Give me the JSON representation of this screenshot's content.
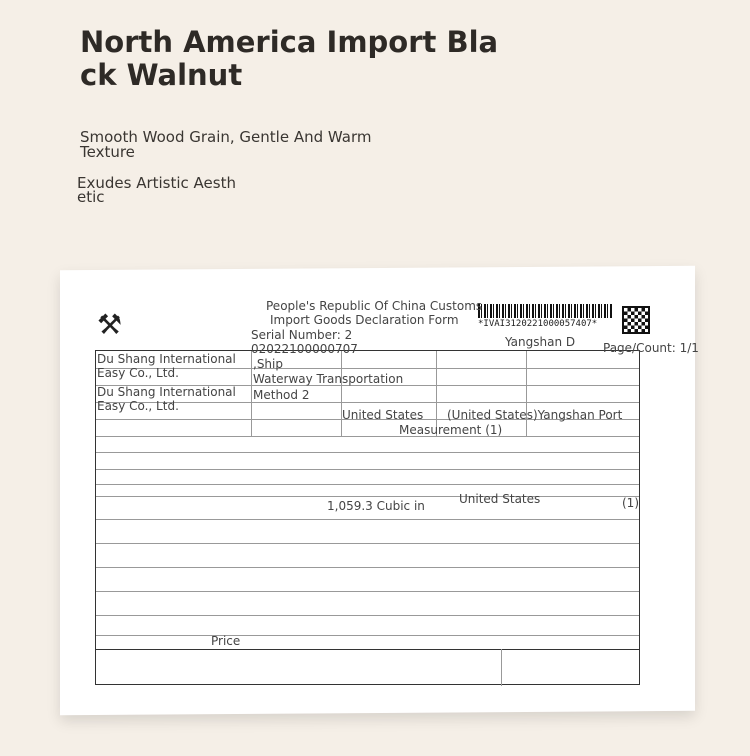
{
  "header": {
    "title": "North America Import Black Walnut",
    "subtitle": "Smooth Wood Grain, Gentle And Warm Texture",
    "subtitle2": "Exudes Artistic Aesthetic"
  },
  "document": {
    "barcode_number": "*IVAI3120221000057407*",
    "line_1": "People's Republic Of China Customs",
    "line_2": "Import Goods Declaration Form",
    "port_short": "Yangshan D",
    "serial": "Serial Number: 2",
    "serial_number": "02022100000707",
    "page_count": "Page/Count: 1/1",
    "company_1": "Du Shang International Easy Co., Ltd.",
    "company_2": "Du Shang International Easy Co., Ltd.",
    "ship": ",Ship",
    "transport": "Waterway Transportation",
    "method": "Method 2",
    "country": "United States",
    "port": "(United States)Yangshan Port",
    "measurement": "Measurement (1)",
    "volume": "1,059.3 Cubic in",
    "origin": "United States",
    "qty": "(1)",
    "price": "Price"
  }
}
